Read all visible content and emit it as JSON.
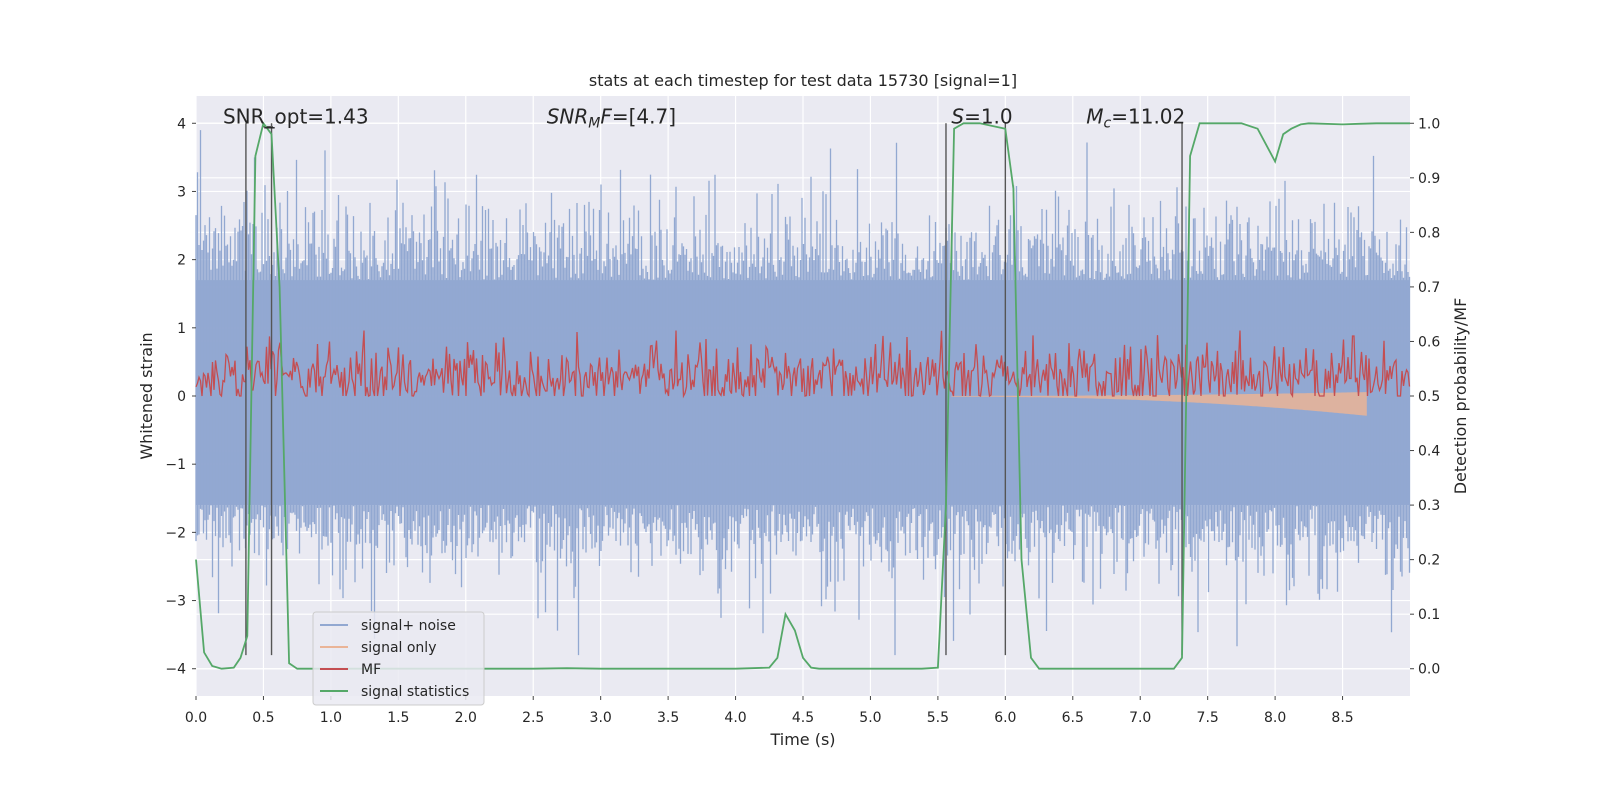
{
  "chart_data": {
    "type": "line",
    "title": "stats at each timestep for test data 15730 [signal=1]",
    "xlabel": "Time (s)",
    "ylabel": "Whitened strain",
    "ylabel_right": "Detection probability/MF",
    "xlim": [
      0,
      9.0
    ],
    "ylim": [
      -4.4,
      4.4
    ],
    "ylim_right": [
      -0.05,
      1.05
    ],
    "x_ticks": [
      0.0,
      0.5,
      1.0,
      1.5,
      2.0,
      2.5,
      3.0,
      3.5,
      4.0,
      4.5,
      5.0,
      5.5,
      6.0,
      6.5,
      7.0,
      7.5,
      8.0,
      8.5
    ],
    "x_tick_labels": [
      "0.0",
      "0.5",
      "1.0",
      "1.5",
      "2.0",
      "2.5",
      "3.0",
      "3.5",
      "4.0",
      "4.5",
      "5.0",
      "5.5",
      "6.0",
      "6.5",
      "7.0",
      "7.5",
      "8.0",
      "8.5"
    ],
    "y_ticks": [
      4,
      3,
      2,
      1,
      0,
      -1,
      -2,
      -3,
      -4
    ],
    "y_tick_labels": [
      "4",
      "3",
      "2",
      "1",
      "0",
      "−1",
      "−2",
      "−3",
      "−4"
    ],
    "y_right_ticks": [
      1.0,
      0.9,
      0.8,
      0.7,
      0.6,
      0.5,
      0.4,
      0.3,
      0.2,
      0.1,
      0.0
    ],
    "y_right_tick_labels": [
      "1.0",
      "0.9",
      "0.8",
      "0.7",
      "0.6",
      "0.5",
      "0.4",
      "0.3",
      "0.2",
      "0.1",
      "0.0"
    ],
    "grid": true,
    "legend_position": "lower-left",
    "annotations": [
      {
        "text": "SNR_opt=1.43",
        "x": 0.2,
        "y": 4.0
      },
      {
        "text": "SNR_MF=[4.7]",
        "x": 2.6,
        "y": 4.0
      },
      {
        "text": "S=1.0",
        "x": 5.6,
        "y": 4.0
      },
      {
        "text": "M_c=11.02",
        "x": 6.6,
        "y": 4.0
      }
    ],
    "vlines": [
      {
        "x": 0.37,
        "y_from": -3.8,
        "y_to": 4.0
      },
      {
        "x": 0.56,
        "y_from": -3.8,
        "y_to": 4.0
      },
      {
        "x": 5.56,
        "y_from": -3.8,
        "y_to": 4.0
      },
      {
        "x": 6.0,
        "y_from": -3.8,
        "y_to": 4.0
      },
      {
        "x": 7.31,
        "y_from": -3.8,
        "y_to": 4.0
      }
    ],
    "hbar": {
      "x_from": 0.49,
      "x_to": 0.57,
      "y": 3.95
    },
    "series": [
      {
        "name": "signal+ noise",
        "color": "#92a8d1",
        "kind": "noise",
        "band": [
          -1.6,
          1.7
        ],
        "spike_max": 3.9,
        "spike_min": -3.8
      },
      {
        "name": "signal only",
        "color": "#eab497",
        "kind": "chirp",
        "x_start": 5.6,
        "x_end": 8.68,
        "max_amp": 0.28
      },
      {
        "name": "MF",
        "color": "#c44e52",
        "kind": "mf",
        "axis": "right",
        "base": 0.535,
        "spread": 0.03,
        "peak": {
          "x": 8.58,
          "y": 0.61
        }
      },
      {
        "name": "signal statistics",
        "color": "#55a868",
        "kind": "line",
        "axis": "right",
        "x": [
          0.0,
          0.06,
          0.12,
          0.19,
          0.28,
          0.33,
          0.38,
          0.44,
          0.5,
          0.56,
          0.62,
          0.69,
          0.75,
          0.81,
          1.0,
          2.0,
          2.5,
          2.75,
          3.0,
          3.5,
          4.0,
          4.25,
          4.31,
          4.37,
          4.44,
          4.5,
          4.56,
          4.62,
          5.0,
          5.38,
          5.5,
          5.56,
          5.62,
          5.69,
          5.75,
          5.81,
          6.0,
          6.06,
          6.12,
          6.19,
          6.25,
          6.31,
          6.5,
          7.0,
          7.25,
          7.31,
          7.37,
          7.44,
          7.5,
          7.75,
          7.87,
          8.0,
          8.06,
          8.12,
          8.19,
          8.25,
          8.5,
          8.62,
          8.75,
          9.0
        ],
        "y": [
          0.2,
          0.03,
          0.005,
          0.0,
          0.002,
          0.02,
          0.06,
          0.94,
          1.0,
          0.98,
          0.7,
          0.01,
          0.0,
          0.0,
          0.0,
          0.0,
          0.0,
          0.001,
          0.0,
          0.0,
          0.0,
          0.002,
          0.02,
          0.1,
          0.07,
          0.02,
          0.002,
          0.0,
          0.0,
          0.0,
          0.002,
          0.3,
          0.99,
          1.0,
          1.0,
          1.0,
          0.99,
          0.88,
          0.2,
          0.02,
          0.0,
          0.0,
          0.0,
          0.0,
          0.0,
          0.02,
          0.94,
          1.0,
          1.0,
          1.0,
          0.99,
          0.93,
          0.98,
          0.99,
          0.998,
          1.0,
          0.998,
          0.999,
          1.0,
          1.0
        ]
      }
    ]
  }
}
